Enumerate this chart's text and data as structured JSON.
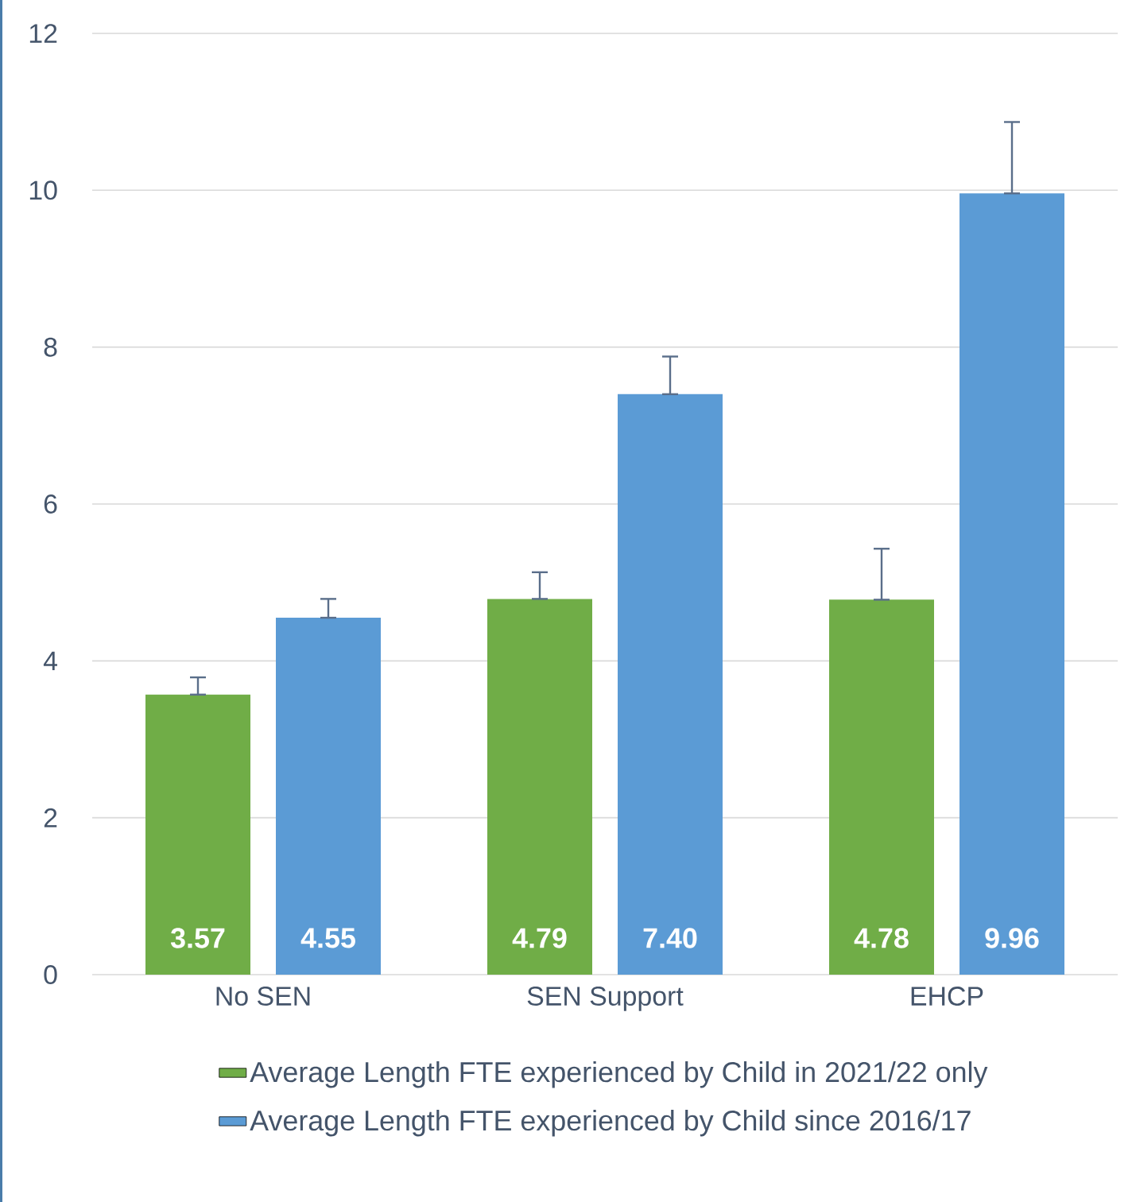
{
  "chart_data": {
    "type": "bar",
    "categories": [
      "No SEN",
      "SEN Support",
      "EHCP"
    ],
    "series": [
      {
        "name": "Average Length FTE experienced by Child in 2021/22 only",
        "color": "#70ad47",
        "values": [
          3.57,
          4.79,
          4.78
        ],
        "value_labels": [
          "3.57",
          "4.79",
          "4.78"
        ],
        "errors": [
          [
            3.57,
            3.79
          ],
          [
            4.79,
            5.13
          ],
          [
            4.78,
            5.43
          ]
        ]
      },
      {
        "name": "Average Length FTE experienced by Child since 2016/17",
        "color": "#5b9bd5",
        "values": [
          4.55,
          7.4,
          9.96
        ],
        "value_labels": [
          "4.55",
          "7.40",
          "9.96"
        ],
        "errors": [
          [
            4.55,
            4.79
          ],
          [
            7.4,
            7.88
          ],
          [
            9.96,
            10.87
          ]
        ]
      }
    ],
    "ylim": [
      0,
      12
    ],
    "yticks": [
      0,
      2,
      4,
      6,
      8,
      10,
      12
    ],
    "grid": "y",
    "legend": "bottom"
  }
}
